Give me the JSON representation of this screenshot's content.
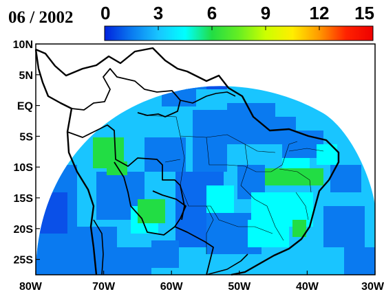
{
  "title": "06 / 2002",
  "colorbar": {
    "ticks": [
      "0",
      "3",
      "6",
      "9",
      "12",
      "15"
    ],
    "min": 0,
    "max": 15,
    "stops": [
      "#0022dd",
      "#0a7af0",
      "#19c5ff",
      "#00ffff",
      "#22dd44",
      "#66ee22",
      "#ccff00",
      "#ffee00",
      "#ff9900",
      "#ff2200",
      "#ee0000"
    ]
  },
  "axes": {
    "lon_labels": [
      "80W",
      "70W",
      "60W",
      "50W",
      "40W",
      "30W"
    ],
    "lat_labels": [
      "10N",
      "5N",
      "EQ",
      "5S",
      "10S",
      "15S",
      "20S",
      "25S"
    ]
  },
  "colors": {
    "ocean": "#ffffff",
    "border": "#000000",
    "base_field": "#19c5ff"
  }
}
